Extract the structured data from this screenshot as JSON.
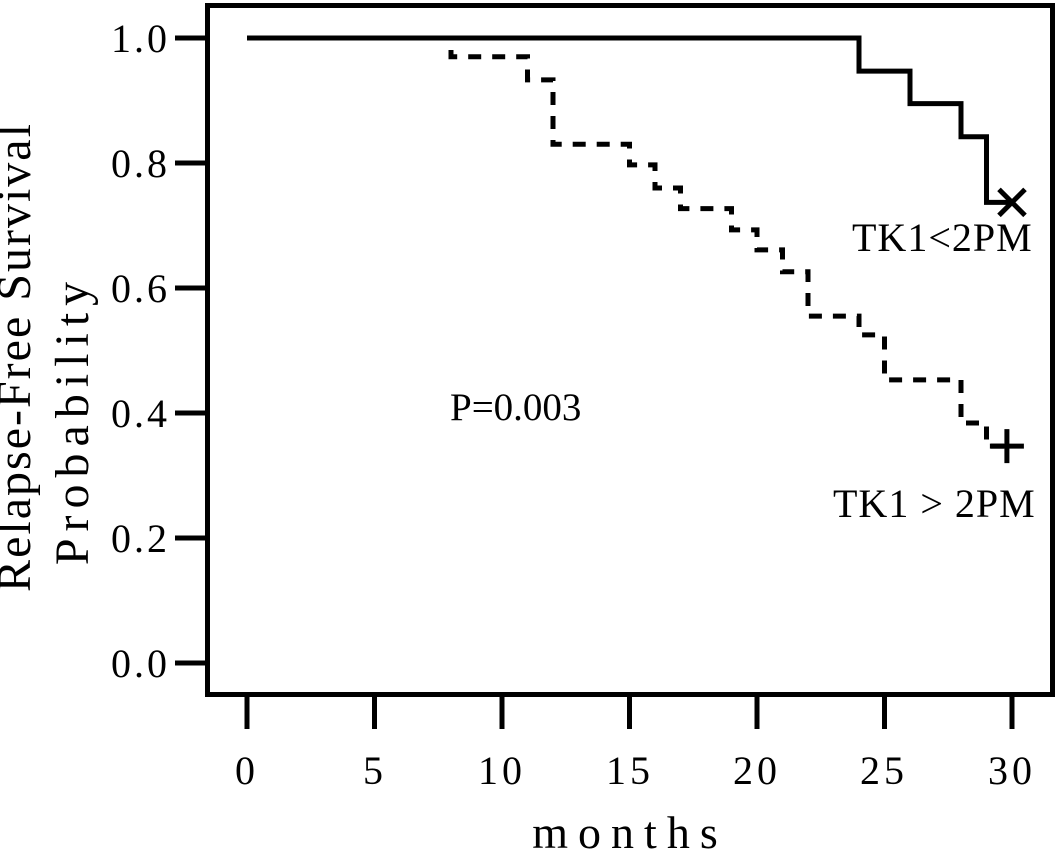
{
  "figure": {
    "background_color": "#ffffff",
    "ink_color": "#000000"
  },
  "chart_data": {
    "type": "line",
    "subtype": "kaplan-meier-step-survival",
    "title": "",
    "xlabel": "months",
    "ylabel_line1": "Relapse-Free Survival",
    "ylabel_line2": "Probability",
    "xlim": [
      0,
      30
    ],
    "ylim": [
      0.0,
      1.0
    ],
    "grid": false,
    "legend_position": "labels-on-plot",
    "x_ticks": [
      0,
      5,
      10,
      15,
      20,
      25,
      30
    ],
    "x_tick_labels": [
      "0",
      "5",
      "10",
      "15",
      "20",
      "25",
      "30"
    ],
    "y_ticks": [
      1.0,
      0.8,
      0.6,
      0.4,
      0.2,
      0.0
    ],
    "y_tick_labels": [
      "1.0",
      "0.8",
      "0.6",
      "0.4",
      "0.2",
      "0.0"
    ],
    "annotation": {
      "text": "P=0.003",
      "x": 8.0,
      "y": 0.4
    },
    "series": [
      {
        "name": "TK1<2PM",
        "line_style": "solid",
        "color": "#000000",
        "points": [
          [
            0,
            1.0
          ],
          [
            24,
            1.0
          ],
          [
            24,
            0.947
          ],
          [
            26,
            0.947
          ],
          [
            26,
            0.895
          ],
          [
            28,
            0.895
          ],
          [
            28,
            0.842
          ],
          [
            29,
            0.842
          ],
          [
            29,
            0.737
          ],
          [
            30,
            0.737
          ]
        ],
        "censor_marker": "x-cross",
        "censors": [
          [
            30,
            0.737
          ]
        ]
      },
      {
        "name": "TK1 > 2PM",
        "line_style": "dashed",
        "color": "#000000",
        "points": [
          [
            0,
            1.0
          ],
          [
            8,
            1.0
          ],
          [
            8,
            0.97
          ],
          [
            11,
            0.97
          ],
          [
            11,
            0.933
          ],
          [
            12,
            0.933
          ],
          [
            12,
            0.83
          ],
          [
            15,
            0.83
          ],
          [
            15,
            0.797
          ],
          [
            16,
            0.797
          ],
          [
            16,
            0.76
          ],
          [
            17,
            0.76
          ],
          [
            17,
            0.727
          ],
          [
            19,
            0.727
          ],
          [
            19,
            0.693
          ],
          [
            20,
            0.693
          ],
          [
            20,
            0.661
          ],
          [
            21,
            0.661
          ],
          [
            21,
            0.626
          ],
          [
            22,
            0.626
          ],
          [
            22,
            0.555
          ],
          [
            24,
            0.555
          ],
          [
            24,
            0.525
          ],
          [
            25,
            0.525
          ],
          [
            25,
            0.453
          ],
          [
            28,
            0.453
          ],
          [
            28,
            0.384
          ],
          [
            29,
            0.384
          ],
          [
            29,
            0.347
          ],
          [
            29.8,
            0.347
          ]
        ],
        "censor_marker": "plus",
        "censors": [
          [
            29.8,
            0.347
          ]
        ]
      }
    ]
  }
}
